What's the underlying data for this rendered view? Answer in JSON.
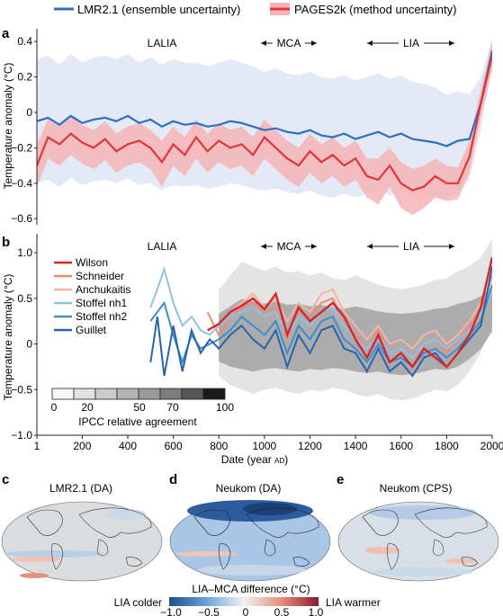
{
  "colors": {
    "lmr": "#2f6fc3",
    "lmr_band": "#e3e9f7",
    "pages": "#e0353b",
    "pages_band": "#f6b4b4",
    "wilson": "#d8252b",
    "schneider": "#f08a74",
    "anchukaitis": "#f6b3a6",
    "stoffel_nh1": "#8fc2e5",
    "stoffel_nh2": "#3c8ed0",
    "guillet": "#2a63ad"
  },
  "legend": {
    "lmr_label": "LMR2.1 (ensemble uncertainty)",
    "pages_label": "PAGES2k (method uncertainty)"
  },
  "panel_a": {
    "letter": "a",
    "ylabel": "Temperature anomaly (°C)",
    "lalia": "LALIA",
    "mca": "MCA",
    "lia": "LIA",
    "yticks": [
      "0.4",
      "0.2",
      "0",
      "−0.2",
      "−0.4",
      "−0.6"
    ]
  },
  "panel_b": {
    "letter": "b",
    "ylabel": "Temperature anomaly (°C)",
    "lalia": "LALIA",
    "mca": "MCA",
    "lia": "LIA",
    "yticks": [
      "1.0",
      "0.5",
      "0",
      "−0.5",
      "−1.0"
    ],
    "series_labels": [
      "Wilson",
      "Schneider",
      "Anchukaitis",
      "Stoffel nh1",
      "Stoffel nh2",
      "Guillet"
    ],
    "ipcc_ticks": [
      "0",
      "20",
      "50",
      "70",
      "100"
    ],
    "ipcc_label": "IPCC relative agreement"
  },
  "x_axis": {
    "label": "Date (year",
    "label_ad": "AD",
    "label_end": ")",
    "ticks": [
      "1",
      "200",
      "400",
      "600",
      "800",
      "1000",
      "1200",
      "1400",
      "1600",
      "1800",
      "2000"
    ]
  },
  "maps": {
    "c_letter": "c",
    "c_title": "LMR2.1 (DA)",
    "d_letter": "d",
    "d_title": "Neukom (DA)",
    "e_letter": "e",
    "e_title": "Neukom (CPS)"
  },
  "colorbar": {
    "title": "LIA–MCA difference (°C)",
    "left_label": "LIA colder",
    "right_label": "LIA warmer",
    "ticks": [
      "−1.0",
      "−0.5",
      "0",
      "0.5",
      "1.0"
    ]
  },
  "chart_data": [
    {
      "type": "line",
      "panel": "a",
      "xlabel": "Date (year AD)",
      "ylabel": "Temperature anomaly (°C)",
      "xlim": [
        1,
        2000
      ],
      "ylim": [
        -0.65,
        0.5
      ],
      "series": [
        {
          "name": "LMR2.1 (ensemble uncertainty)",
          "x": [
            1,
            50,
            100,
            150,
            200,
            250,
            300,
            350,
            400,
            450,
            500,
            550,
            600,
            650,
            700,
            750,
            800,
            850,
            900,
            950,
            1000,
            1050,
            1100,
            1150,
            1200,
            1250,
            1300,
            1350,
            1400,
            1450,
            1500,
            1550,
            1600,
            1650,
            1700,
            1750,
            1800,
            1850,
            1900,
            1950,
            2000
          ],
          "y": [
            -0.05,
            -0.03,
            -0.07,
            -0.02,
            -0.06,
            -0.04,
            -0.03,
            -0.05,
            -0.02,
            -0.06,
            -0.04,
            -0.08,
            -0.05,
            -0.07,
            -0.06,
            -0.08,
            -0.07,
            -0.05,
            -0.06,
            -0.08,
            -0.1,
            -0.09,
            -0.11,
            -0.12,
            -0.1,
            -0.13,
            -0.14,
            -0.12,
            -0.15,
            -0.13,
            -0.11,
            -0.14,
            -0.12,
            -0.15,
            -0.16,
            -0.17,
            -0.19,
            -0.16,
            -0.15,
            0.05,
            0.35
          ],
          "lower": [
            -0.4,
            -0.38,
            -0.42,
            -0.37,
            -0.41,
            -0.39,
            -0.38,
            -0.4,
            -0.37,
            -0.41,
            -0.4,
            -0.44,
            -0.41,
            -0.42,
            -0.41,
            -0.43,
            -0.42,
            -0.4,
            -0.41,
            -0.43,
            -0.44,
            -0.43,
            -0.45,
            -0.46,
            -0.44,
            -0.47,
            -0.48,
            -0.46,
            -0.48,
            -0.46,
            -0.44,
            -0.47,
            -0.45,
            -0.47,
            -0.48,
            -0.48,
            -0.48,
            -0.44,
            -0.38,
            -0.1,
            0.28
          ],
          "upper": [
            0.3,
            0.32,
            0.27,
            0.33,
            0.28,
            0.31,
            0.32,
            0.3,
            0.33,
            0.28,
            0.31,
            0.27,
            0.3,
            0.28,
            0.28,
            0.26,
            0.28,
            0.3,
            0.28,
            0.26,
            0.23,
            0.25,
            0.22,
            0.21,
            0.23,
            0.2,
            0.19,
            0.21,
            0.18,
            0.2,
            0.22,
            0.19,
            0.21,
            0.17,
            0.16,
            0.14,
            0.1,
            0.12,
            0.1,
            0.2,
            0.42
          ]
        },
        {
          "name": "PAGES2k (method uncertainty)",
          "x": [
            1,
            50,
            100,
            150,
            200,
            250,
            300,
            350,
            400,
            450,
            500,
            550,
            600,
            650,
            700,
            750,
            800,
            850,
            900,
            950,
            1000,
            1050,
            1100,
            1150,
            1200,
            1250,
            1300,
            1350,
            1400,
            1450,
            1500,
            1550,
            1600,
            1650,
            1700,
            1750,
            1800,
            1850,
            1900,
            1950,
            2000
          ],
          "y": [
            -0.3,
            -0.14,
            -0.18,
            -0.12,
            -0.17,
            -0.2,
            -0.15,
            -0.22,
            -0.18,
            -0.16,
            -0.2,
            -0.28,
            -0.18,
            -0.24,
            -0.14,
            -0.22,
            -0.16,
            -0.2,
            -0.18,
            -0.24,
            -0.14,
            -0.2,
            -0.26,
            -0.3,
            -0.22,
            -0.28,
            -0.24,
            -0.3,
            -0.26,
            -0.36,
            -0.38,
            -0.3,
            -0.4,
            -0.44,
            -0.42,
            -0.36,
            -0.4,
            -0.4,
            -0.25,
            0.05,
            0.32
          ],
          "lower": [
            -0.42,
            -0.26,
            -0.3,
            -0.24,
            -0.29,
            -0.32,
            -0.27,
            -0.34,
            -0.3,
            -0.28,
            -0.32,
            -0.42,
            -0.3,
            -0.36,
            -0.26,
            -0.34,
            -0.28,
            -0.32,
            -0.3,
            -0.36,
            -0.26,
            -0.32,
            -0.38,
            -0.42,
            -0.34,
            -0.4,
            -0.36,
            -0.42,
            -0.38,
            -0.48,
            -0.52,
            -0.42,
            -0.54,
            -0.58,
            -0.54,
            -0.48,
            -0.5,
            -0.49,
            -0.34,
            -0.03,
            0.24
          ],
          "upper": [
            -0.18,
            -0.04,
            -0.08,
            -0.02,
            -0.07,
            -0.1,
            -0.05,
            -0.12,
            -0.08,
            -0.06,
            -0.1,
            -0.16,
            -0.08,
            -0.14,
            -0.04,
            -0.12,
            -0.06,
            -0.1,
            -0.08,
            -0.14,
            -0.04,
            -0.1,
            -0.16,
            -0.2,
            -0.12,
            -0.18,
            -0.14,
            -0.2,
            -0.16,
            -0.26,
            -0.26,
            -0.2,
            -0.28,
            -0.32,
            -0.3,
            -0.26,
            -0.3,
            -0.31,
            -0.16,
            0.13,
            0.4
          ]
        }
      ],
      "annotations": [
        {
          "text": "LALIA",
          "x": 580,
          "y": 0.39
        },
        {
          "text": "MCA",
          "x": 1100,
          "y": 0.39
        },
        {
          "text": "LIA",
          "x": 1550,
          "y": 0.39
        }
      ]
    },
    {
      "type": "line",
      "panel": "b",
      "xlabel": "Date (year AD)",
      "ylabel": "Temperature anomaly (°C)",
      "xlim": [
        1,
        2000
      ],
      "ylim": [
        -1.0,
        1.2
      ],
      "grey_band_x": [
        800,
        850,
        900,
        950,
        1000,
        1050,
        1100,
        1150,
        1200,
        1250,
        1300,
        1350,
        1400,
        1450,
        1500,
        1550,
        1600,
        1650,
        1700,
        1750,
        1800,
        1850,
        1900,
        1950,
        2000
      ],
      "grey_band_lower": [
        -0.35,
        -0.45,
        -0.5,
        -0.55,
        -0.5,
        -0.48,
        -0.52,
        -0.55,
        -0.5,
        -0.52,
        -0.48,
        -0.5,
        -0.55,
        -0.58,
        -0.55,
        -0.6,
        -0.62,
        -0.6,
        -0.55,
        -0.5,
        -0.52,
        -0.45,
        -0.3,
        -0.1,
        0.25
      ],
      "grey_band_upper": [
        0.6,
        0.75,
        0.9,
        0.85,
        0.8,
        0.85,
        0.78,
        0.8,
        0.75,
        0.78,
        0.72,
        0.7,
        0.75,
        0.7,
        0.65,
        0.62,
        0.6,
        0.62,
        0.65,
        0.7,
        0.72,
        0.8,
        0.85,
        0.95,
        1.15
      ],
      "series": [
        {
          "name": "Wilson",
          "x": [
            750,
            800,
            850,
            900,
            950,
            1000,
            1050,
            1100,
            1150,
            1200,
            1250,
            1300,
            1350,
            1400,
            1450,
            1500,
            1550,
            1600,
            1650,
            1700,
            1750,
            1800,
            1850,
            1900,
            1950,
            2000
          ],
          "y": [
            0.15,
            0.22,
            0.35,
            0.42,
            0.5,
            0.38,
            0.55,
            0.1,
            0.4,
            0.25,
            0.35,
            0.45,
            0.3,
            0.05,
            -0.15,
            0.1,
            -0.2,
            -0.1,
            -0.25,
            -0.05,
            -0.15,
            -0.25,
            -0.1,
            0.1,
            0.4,
            0.95
          ]
        },
        {
          "name": "Schneider",
          "x": [
            750,
            800,
            850,
            900,
            950,
            1000,
            1050,
            1100,
            1150,
            1200,
            1250,
            1300,
            1350,
            1400,
            1450,
            1500,
            1550,
            1600,
            1650,
            1700,
            1750,
            1800,
            1850,
            1900,
            1950,
            2000
          ],
          "y": [
            0.35,
            0.1,
            0.3,
            0.4,
            0.45,
            0.35,
            0.4,
            0.05,
            0.35,
            0.3,
            0.45,
            0.5,
            0.25,
            0.1,
            -0.05,
            0.15,
            -0.1,
            -0.05,
            -0.15,
            0.0,
            0.05,
            -0.1,
            0.05,
            0.2,
            0.35,
            0.75
          ]
        },
        {
          "name": "Anchukaitis",
          "x": [
            850,
            900,
            950,
            1000,
            1050,
            1100,
            1150,
            1200,
            1250,
            1300,
            1350,
            1400,
            1450,
            1500,
            1550,
            1600,
            1650,
            1700,
            1750,
            1800,
            1850,
            1900,
            1950,
            2000
          ],
          "y": [
            0.35,
            0.45,
            0.55,
            0.4,
            0.5,
            0.25,
            0.45,
            0.35,
            0.55,
            0.6,
            0.35,
            0.2,
            0.05,
            0.2,
            0.0,
            0.05,
            -0.05,
            0.1,
            0.15,
            0.0,
            0.1,
            0.25,
            0.45,
            0.6
          ]
        },
        {
          "name": "Stoffel nh1",
          "x": [
            500,
            530,
            560,
            600,
            640,
            680,
            720,
            760,
            800,
            850,
            900,
            950,
            1000,
            1050,
            1100,
            1150,
            1200,
            1250,
            1300,
            1350,
            1400,
            1450,
            1500,
            1550,
            1600,
            1650,
            1700,
            1750,
            1800,
            1850,
            1900,
            1950,
            2000
          ],
          "y": [
            0.4,
            0.6,
            0.82,
            0.45,
            0.2,
            0.3,
            0.15,
            0.1,
            0.2,
            0.3,
            0.35,
            0.4,
            0.3,
            0.35,
            0.1,
            0.3,
            0.2,
            0.35,
            0.4,
            0.2,
            0.05,
            -0.05,
            0.1,
            -0.1,
            -0.05,
            -0.15,
            0.0,
            0.05,
            -0.05,
            0.05,
            0.15,
            0.35,
            0.55
          ]
        },
        {
          "name": "Stoffel nh2",
          "x": [
            500,
            530,
            560,
            600,
            640,
            680,
            720,
            760,
            800,
            850,
            900,
            950,
            1000,
            1050,
            1100,
            1150,
            1200,
            1250,
            1300,
            1350,
            1400,
            1450,
            1500,
            1550,
            1600,
            1650,
            1700,
            1750,
            1800,
            1850,
            1900,
            1950,
            2000
          ],
          "y": [
            0.25,
            0.35,
            0.45,
            0.1,
            -0.2,
            0.1,
            -0.05,
            0.0,
            0.05,
            0.15,
            0.3,
            0.2,
            0.1,
            0.25,
            -0.1,
            0.2,
            0.05,
            0.25,
            0.3,
            0.05,
            -0.05,
            -0.2,
            0.0,
            -0.2,
            -0.15,
            -0.25,
            -0.1,
            -0.05,
            -0.15,
            -0.05,
            0.1,
            0.25,
            0.65
          ]
        },
        {
          "name": "Guillet",
          "x": [
            500,
            530,
            560,
            600,
            640,
            680,
            720,
            760,
            800,
            850,
            900,
            950,
            1000,
            1050,
            1100,
            1150,
            1200,
            1250,
            1300,
            1350,
            1400,
            1450,
            1500,
            1550,
            1600,
            1650,
            1700,
            1750,
            1800,
            1850,
            1900,
            1950,
            2000
          ],
          "y": [
            -0.2,
            0.3,
            -0.35,
            0.2,
            -0.3,
            0.15,
            -0.1,
            0.05,
            -0.05,
            0.1,
            0.2,
            0.05,
            -0.05,
            0.15,
            -0.25,
            0.1,
            -0.1,
            0.15,
            0.2,
            -0.05,
            -0.1,
            -0.3,
            -0.05,
            -0.3,
            -0.2,
            -0.35,
            -0.15,
            -0.1,
            -0.25,
            -0.1,
            0.05,
            0.2,
            0.85
          ]
        }
      ],
      "annotations": [
        {
          "text": "LALIA",
          "x": 580,
          "y": 1.05
        },
        {
          "text": "MCA",
          "x": 1100,
          "y": 1.05
        },
        {
          "text": "LIA",
          "x": 1550,
          "y": 1.05
        }
      ]
    }
  ]
}
